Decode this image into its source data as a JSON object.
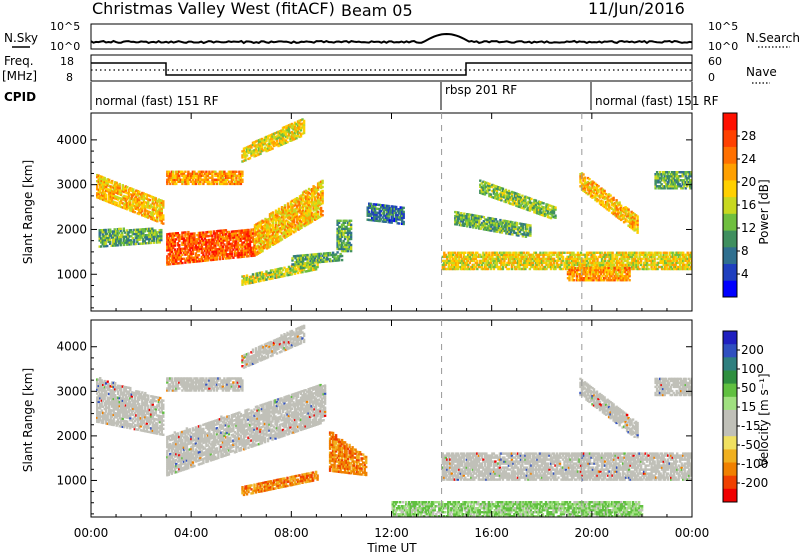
{
  "header": {
    "title": "Christmas Valley West (fitACF)",
    "beam": "Beam 05",
    "date": "11/Jun/2016"
  },
  "left_labels": {
    "nsky": "N.Sky",
    "freq_top": "Freq.",
    "freq_unit": "[MHz]",
    "cpid": "CPID"
  },
  "right_labels": {
    "nsearch": "N.Search",
    "nave": "Nave"
  },
  "noise_axis": {
    "left_ticks": [
      "10^5",
      "10^0"
    ],
    "right_ticks": [
      "10^5",
      "10^0"
    ]
  },
  "freq_axis": {
    "left_ticks": [
      "18",
      "8"
    ],
    "right_ticks": [
      "60",
      "0"
    ]
  },
  "cpid_segments": [
    {
      "label": "normal (fast) 151 RF",
      "start": 0,
      "end": 14
    },
    {
      "label": "rbsp 201 RF",
      "start": 14,
      "end": 19.6
    },
    {
      "label": "normal (fast) 151 RF",
      "start": 19.6,
      "end": 24
    }
  ],
  "time_axis": {
    "label": "Time UT",
    "ticks": [
      "00:00",
      "04:00",
      "08:00",
      "12:00",
      "16:00",
      "20:00",
      "00:00"
    ],
    "range_hours": [
      0,
      24
    ]
  },
  "range_axis": {
    "label": "Slant Range [km]",
    "ticks": [
      "1000",
      "2000",
      "3000",
      "4000"
    ],
    "range_km": [
      180,
      4600
    ]
  },
  "power_colorbar": {
    "label": "Power [dB]",
    "ticks": [
      "4",
      "8",
      "12",
      "16",
      "20",
      "24",
      "28"
    ],
    "colors": [
      "#0000ff",
      "#1f3fbf",
      "#2f6f8f",
      "#3f8f5f",
      "#6fbf3f",
      "#c8d820",
      "#ffd000",
      "#ffa000",
      "#ff7000",
      "#ff4000",
      "#ff1000"
    ]
  },
  "velocity_colorbar": {
    "label": "Velocity [m s⁻¹]",
    "ticks": [
      "200",
      "100",
      "50",
      "15",
      "-15",
      "-50",
      "-100",
      "-200"
    ],
    "colors": [
      "#2020c0",
      "#3050c0",
      "#2f7f7f",
      "#2f8f3f",
      "#60c040",
      "#a0e080",
      "#c0c0b8",
      "#c0c0b8",
      "#f0e060",
      "#f0b020",
      "#f08000",
      "#f04000",
      "#f00000"
    ]
  },
  "chart_data": {
    "type": "heatmap",
    "x_label": "Time UT",
    "y_label": "Slant Range [km]",
    "xlim_hours": [
      0,
      24
    ],
    "ylim_km": [
      180,
      4600
    ],
    "power_features": [
      {
        "t0": 0.2,
        "t1": 2.9,
        "r0": 2700,
        "r1": 3200,
        "r_end0": 2100,
        "r_end1": 2600,
        "level": 20
      },
      {
        "t0": 3.0,
        "t1": 6.5,
        "r0": 1200,
        "r1": 1900,
        "r_end0": 1400,
        "r_end1": 2000,
        "level": 26
      },
      {
        "t0": 6.5,
        "t1": 9.2,
        "r0": 1400,
        "r1": 2100,
        "r_end0": 2300,
        "r_end1": 3100,
        "level": 20
      },
      {
        "t0": 3.0,
        "t1": 6.0,
        "r0": 3000,
        "r1": 3300,
        "r_end0": 3000,
        "r_end1": 3300,
        "level": 22
      },
      {
        "t0": 6.0,
        "t1": 8.5,
        "r0": 3500,
        "r1": 3800,
        "r_end0": 4100,
        "r_end1": 4500,
        "level": 18
      },
      {
        "t0": 0.3,
        "t1": 2.8,
        "r0": 1600,
        "r1": 2000,
        "r_end0": 1700,
        "r_end1": 2000,
        "level": 12
      },
      {
        "t0": 6.0,
        "t1": 9.0,
        "r0": 750,
        "r1": 950,
        "r_end0": 1100,
        "r_end1": 1300,
        "level": 16
      },
      {
        "t0": 8.0,
        "t1": 10.0,
        "r0": 1200,
        "r1": 1400,
        "r_end0": 1300,
        "r_end1": 1500,
        "level": 12
      },
      {
        "t0": 9.8,
        "t1": 10.4,
        "r0": 1500,
        "r1": 2200,
        "r_end0": 1500,
        "r_end1": 2200,
        "level": 12
      },
      {
        "t0": 11.0,
        "t1": 12.5,
        "r0": 2200,
        "r1": 2600,
        "r_end0": 2100,
        "r_end1": 2500,
        "level": 8
      },
      {
        "t0": 14.5,
        "t1": 17.5,
        "r0": 2100,
        "r1": 2400,
        "r_end0": 1800,
        "r_end1": 2100,
        "level": 12
      },
      {
        "t0": 14.0,
        "t1": 24.0,
        "r0": 1100,
        "r1": 1500,
        "r_end0": 1100,
        "r_end1": 1500,
        "level": 18
      },
      {
        "t0": 15.5,
        "t1": 18.5,
        "r0": 2800,
        "r1": 3100,
        "r_end0": 2200,
        "r_end1": 2500,
        "level": 14
      },
      {
        "t0": 19.5,
        "t1": 21.8,
        "r0": 2900,
        "r1": 3300,
        "r_end0": 1900,
        "r_end1": 2300,
        "level": 20
      },
      {
        "t0": 22.5,
        "t1": 24.0,
        "r0": 2900,
        "r1": 3300,
        "r_end0": 2900,
        "r_end1": 3300,
        "level": 12
      },
      {
        "t0": 19.0,
        "t1": 21.5,
        "r0": 850,
        "r1": 1150,
        "r_end0": 850,
        "r_end1": 1150,
        "level": 22
      }
    ],
    "velocity_features": [
      {
        "t0": 0.2,
        "t1": 2.9,
        "r0": 2300,
        "r1": 3300,
        "r_end0": 2000,
        "r_end1": 2800,
        "v": 0
      },
      {
        "t0": 3.0,
        "t1": 9.3,
        "r0": 1100,
        "r1": 2000,
        "r_end0": 2300,
        "r_end1": 3200,
        "v": 0
      },
      {
        "t0": 3.0,
        "t1": 6.0,
        "r0": 3000,
        "r1": 3300,
        "r_end0": 3000,
        "r_end1": 3300,
        "v": 0
      },
      {
        "t0": 6.0,
        "t1": 8.5,
        "r0": 3500,
        "r1": 3800,
        "r_end0": 4100,
        "r_end1": 4500,
        "v": 0
      },
      {
        "t0": 6.0,
        "t1": 9.0,
        "r0": 650,
        "r1": 850,
        "r_end0": 1000,
        "r_end1": 1200,
        "v": -80
      },
      {
        "t0": 9.5,
        "t1": 11.0,
        "r0": 1200,
        "r1": 2100,
        "r_end0": 1100,
        "r_end1": 1500,
        "v": -70
      },
      {
        "t0": 14.0,
        "t1": 24.0,
        "r0": 1000,
        "r1": 1600,
        "r_end0": 1000,
        "r_end1": 1600,
        "v": 0
      },
      {
        "t0": 19.5,
        "t1": 21.8,
        "r0": 2900,
        "r1": 3300,
        "r_end0": 1900,
        "r_end1": 2300,
        "v": 0
      },
      {
        "t0": 22.5,
        "t1": 24.0,
        "r0": 2900,
        "r1": 3300,
        "r_end0": 2900,
        "r_end1": 3300,
        "v": 0
      },
      {
        "t0": 12.0,
        "t1": 22.0,
        "r0": 180,
        "r1": 500,
        "r_end0": 180,
        "r_end1": 500,
        "v": 30
      }
    ],
    "dashed_time_markers_hours": [
      14.0,
      19.6
    ]
  }
}
